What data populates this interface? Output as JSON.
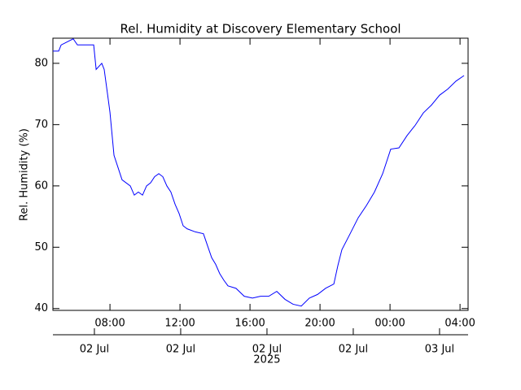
{
  "chart_data": {
    "type": "line",
    "title": "Rel. Humidity at Discovery Elementary School",
    "y_label": "Rel. Humidity (%)",
    "x": [
      4.74,
      5.07,
      5.21,
      5.9,
      6.14,
      7.07,
      7.21,
      7.53,
      7.67,
      7.86,
      8.0,
      8.23,
      8.46,
      8.69,
      9.16,
      9.39,
      9.62,
      9.86,
      10.09,
      10.32,
      10.55,
      10.79,
      11.02,
      11.25,
      11.48,
      11.72,
      11.95,
      12.18,
      12.41,
      12.88,
      13.34,
      13.58,
      13.81,
      14.04,
      14.27,
      14.51,
      14.74,
      15.2,
      15.67,
      16.14,
      16.6,
      17.07,
      17.53,
      18.0,
      18.46,
      18.93,
      19.39,
      19.86,
      20.32,
      20.79,
      21.02,
      21.25,
      21.72,
      22.18,
      22.65,
      23.11,
      23.58,
      24.04,
      24.51,
      24.97,
      25.44,
      25.9,
      26.37,
      26.83,
      27.3,
      27.77,
      28.23
    ],
    "series": [
      {
        "name": "Rel. Humidity",
        "color": "#0000ff",
        "values": [
          82,
          82,
          83,
          84,
          83,
          83,
          79,
          80,
          79,
          75,
          72,
          65,
          63,
          61,
          60,
          58.5,
          59,
          58.5,
          60,
          60.5,
          61.5,
          62,
          61.5,
          60,
          59,
          57,
          55.5,
          53.5,
          53,
          52.5,
          52.2,
          50.2,
          48.3,
          47.2,
          45.7,
          44.6,
          43.7,
          43.3,
          42,
          41.7,
          42,
          42,
          42.8,
          41.5,
          40.7,
          40.4,
          41.7,
          42.3,
          43.3,
          44,
          47,
          49.6,
          52.2,
          54.8,
          56.8,
          59,
          62,
          66,
          66.2,
          68.2,
          69.9,
          71.9,
          73.2,
          74.8,
          75.8,
          77.1,
          78
        ]
      }
    ],
    "xlim": [
      4.74,
      28.46
    ],
    "xticks": [
      {
        "value": 8,
        "label": "08:00"
      },
      {
        "value": 12,
        "label": "12:00"
      },
      {
        "value": 16,
        "label": "16:00"
      },
      {
        "value": 20,
        "label": "20:00"
      },
      {
        "value": 24,
        "label": "00:00"
      },
      {
        "value": 28,
        "label": "04:00"
      }
    ],
    "x2ticks": [
      {
        "value": 7.11,
        "label": "02 Jul"
      },
      {
        "value": 12.04,
        "label": "02 Jul"
      },
      {
        "value": 16.97,
        "label": "02 Jul"
      },
      {
        "value": 21.9,
        "label": "02 Jul"
      },
      {
        "value": 26.83,
        "label": "03 Jul"
      }
    ],
    "x2_label": "2025",
    "ylim": [
      39.7,
      84.1
    ],
    "yticks": [
      40,
      50,
      60,
      70,
      80
    ]
  }
}
